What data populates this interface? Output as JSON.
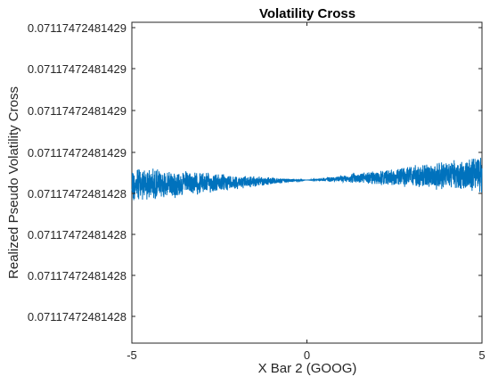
{
  "chart_data": {
    "type": "line",
    "title": "Volatility Cross",
    "xlabel": "X Bar 2 (GOOG)",
    "ylabel": "Realized Pseudo Volatility Cross",
    "xlim": [
      -5,
      5
    ],
    "x_ticks": [
      "-5",
      "0",
      "5"
    ],
    "y_ticks": [
      "0.07117472481429",
      "0.07117472481429",
      "0.07117472481429",
      "0.07117472481429",
      "0.07117472481428",
      "0.07117472481428",
      "0.07117472481428",
      "0.07117472481428"
    ],
    "series": [
      {
        "color": "#0072BD",
        "style": "dense noisy oscillation, band narrowing to a point at x=0 and widening toward both ends",
        "center_at_x": [
          {
            "x": -5,
            "y": 0.5
          },
          {
            "x": 0,
            "y": 0.0
          },
          {
            "x": 5,
            "y": -0.6
          }
        ],
        "band_halfwidth_at_x": [
          {
            "x": -5,
            "y": 1.0
          },
          {
            "x": 0,
            "y": 0.0
          },
          {
            "x": 5,
            "y": 1.0
          }
        ]
      }
    ],
    "grid": false,
    "legend": "none"
  }
}
